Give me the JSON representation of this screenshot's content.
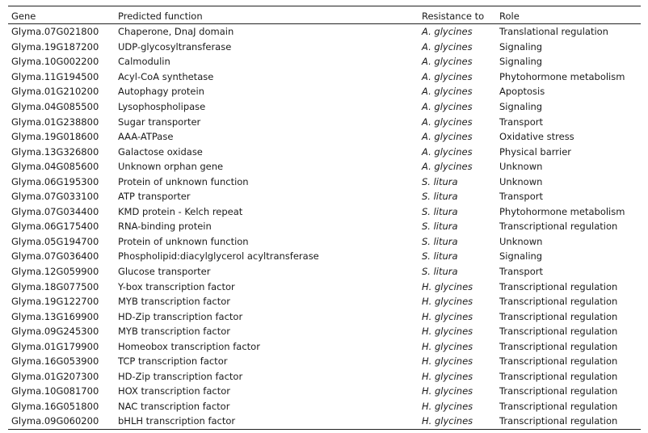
{
  "table": {
    "headers": [
      "Gene",
      "Predicted function",
      "Resistance to",
      "Role"
    ],
    "rows": [
      [
        "Glyma.07G021800",
        "Chaperone, DnaJ domain",
        "A. glycines",
        "Translational regulation"
      ],
      [
        "Glyma.19G187200",
        "UDP-glycosyltransferase",
        "A. glycines",
        "Signaling"
      ],
      [
        "Glyma.10G002200",
        "Calmodulin",
        "A. glycines",
        "Signaling"
      ],
      [
        "Glyma.11G194500",
        "Acyl-CoA synthetase",
        "A. glycines",
        "Phytohormone metabolism"
      ],
      [
        "Glyma.01G210200",
        "Autophagy protein",
        "A. glycines",
        "Apoptosis"
      ],
      [
        "Glyma.04G085500",
        "Lysophospholipase",
        "A. glycines",
        "Signaling"
      ],
      [
        "Glyma.01G238800",
        "Sugar transporter",
        "A. glycines",
        "Transport"
      ],
      [
        "Glyma.19G018600",
        "AAA-ATPase",
        "A. glycines",
        "Oxidative stress"
      ],
      [
        "Glyma.13G326800",
        "Galactose oxidase",
        "A. glycines",
        "Physical barrier"
      ],
      [
        "Glyma.04G085600",
        "Unknown orphan gene",
        "A. glycines",
        "Unknown"
      ],
      [
        "Glyma.06G195300",
        "Protein of unknown function",
        "S. litura",
        "Unknown"
      ],
      [
        "Glyma.07G033100",
        "ATP transporter",
        "S. litura",
        "Transport"
      ],
      [
        "Glyma.07G034400",
        "KMD protein - Kelch repeat",
        "S. litura",
        "Phytohormone metabolism"
      ],
      [
        "Glyma.06G175400",
        "RNA-binding protein",
        "S. litura",
        "Transcriptional regulation"
      ],
      [
        "Glyma.05G194700",
        "Protein of unknown function",
        "S. litura",
        "Unknown"
      ],
      [
        "Glyma.07G036400",
        "Phospholipid:diacylglycerol acyltransferase",
        "S. litura",
        "Signaling"
      ],
      [
        "Glyma.12G059900",
        "Glucose transporter",
        "S. litura",
        "Transport"
      ],
      [
        "Glyma.18G077500",
        "Y-box transcription factor",
        "H. glycines",
        "Transcriptional regulation"
      ],
      [
        "Glyma.19G122700",
        "MYB transcription factor",
        "H. glycines",
        "Transcriptional regulation"
      ],
      [
        "Glyma.13G169900",
        "HD-Zip transcription factor",
        "H. glycines",
        "Transcriptional regulation"
      ],
      [
        "Glyma.09G245300",
        "MYB transcription factor",
        "H. glycines",
        "Transcriptional regulation"
      ],
      [
        "Glyma.01G179900",
        "Homeobox transcription factor",
        "H. glycines",
        "Transcriptional regulation"
      ],
      [
        "Glyma.16G053900",
        "TCP transcription factor",
        "H. glycines",
        "Transcriptional regulation"
      ],
      [
        "Glyma.01G207300",
        "HD-Zip transcription factor",
        "H. glycines",
        "Transcriptional regulation"
      ],
      [
        "Glyma.10G081700",
        "HOX transcription factor",
        "H. glycines",
        "Transcriptional regulation"
      ],
      [
        "Glyma.16G051800",
        "NAC transcription factor",
        "H. glycines",
        "Transcriptional regulation"
      ],
      [
        "Glyma.09G060200",
        "bHLH transcription factor",
        "H. glycines",
        "Transcriptional regulation"
      ]
    ]
  }
}
